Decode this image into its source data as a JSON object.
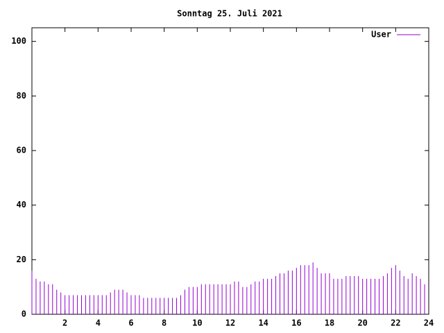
{
  "chart_data": {
    "type": "impulse",
    "title": "Sonntag 25. Juli 2021",
    "x": [
      0,
      0.25,
      0.5,
      0.75,
      1,
      1.25,
      1.5,
      1.75,
      2,
      2.25,
      2.5,
      2.75,
      3,
      3.25,
      3.5,
      3.75,
      4,
      4.25,
      4.5,
      4.75,
      5,
      5.25,
      5.5,
      5.75,
      6,
      6.25,
      6.5,
      6.75,
      7,
      7.25,
      7.5,
      7.75,
      8,
      8.25,
      8.5,
      8.75,
      9,
      9.25,
      9.5,
      9.75,
      10,
      10.25,
      10.5,
      10.75,
      11,
      11.25,
      11.5,
      11.75,
      12,
      12.25,
      12.5,
      12.75,
      13,
      13.25,
      13.5,
      13.75,
      14,
      14.25,
      14.5,
      14.75,
      15,
      15.25,
      15.5,
      15.75,
      16,
      16.25,
      16.5,
      16.75,
      17,
      17.25,
      17.5,
      17.75,
      18,
      18.25,
      18.5,
      18.75,
      19,
      19.25,
      19.5,
      19.75,
      20,
      20.25,
      20.5,
      20.75,
      21,
      21.25,
      21.5,
      21.75,
      22,
      22.25,
      22.5,
      22.75,
      23,
      23.25,
      23.5,
      23.75
    ],
    "series": [
      {
        "name": "User",
        "color": "#9400d3",
        "values": [
          16,
          13,
          12,
          12,
          11,
          11,
          9,
          8,
          7,
          7,
          7,
          7,
          7,
          7,
          7,
          7,
          7,
          7,
          7,
          8,
          9,
          9,
          9,
          8,
          7,
          7,
          7,
          6,
          6,
          6,
          6,
          6,
          6,
          6,
          6,
          6,
          7,
          9,
          10,
          10,
          10,
          11,
          11,
          11,
          11,
          11,
          11,
          11,
          11,
          12,
          12,
          10,
          10,
          11,
          12,
          12,
          13,
          13,
          13,
          14,
          15,
          15,
          16,
          16,
          17,
          18,
          18,
          18,
          19,
          17,
          15,
          15,
          15,
          13,
          13,
          13,
          14,
          14,
          14,
          14,
          13,
          13,
          13,
          13,
          13,
          14,
          15,
          17,
          18,
          16,
          14,
          13,
          15,
          14,
          13,
          11
        ]
      }
    ],
    "xlim": [
      0,
      24
    ],
    "xticks": [
      2,
      4,
      6,
      8,
      10,
      12,
      14,
      16,
      18,
      20,
      22,
      24
    ],
    "ylim": [
      0,
      105
    ],
    "yticks": [
      0,
      20,
      40,
      60,
      80,
      100
    ],
    "grid": false
  }
}
